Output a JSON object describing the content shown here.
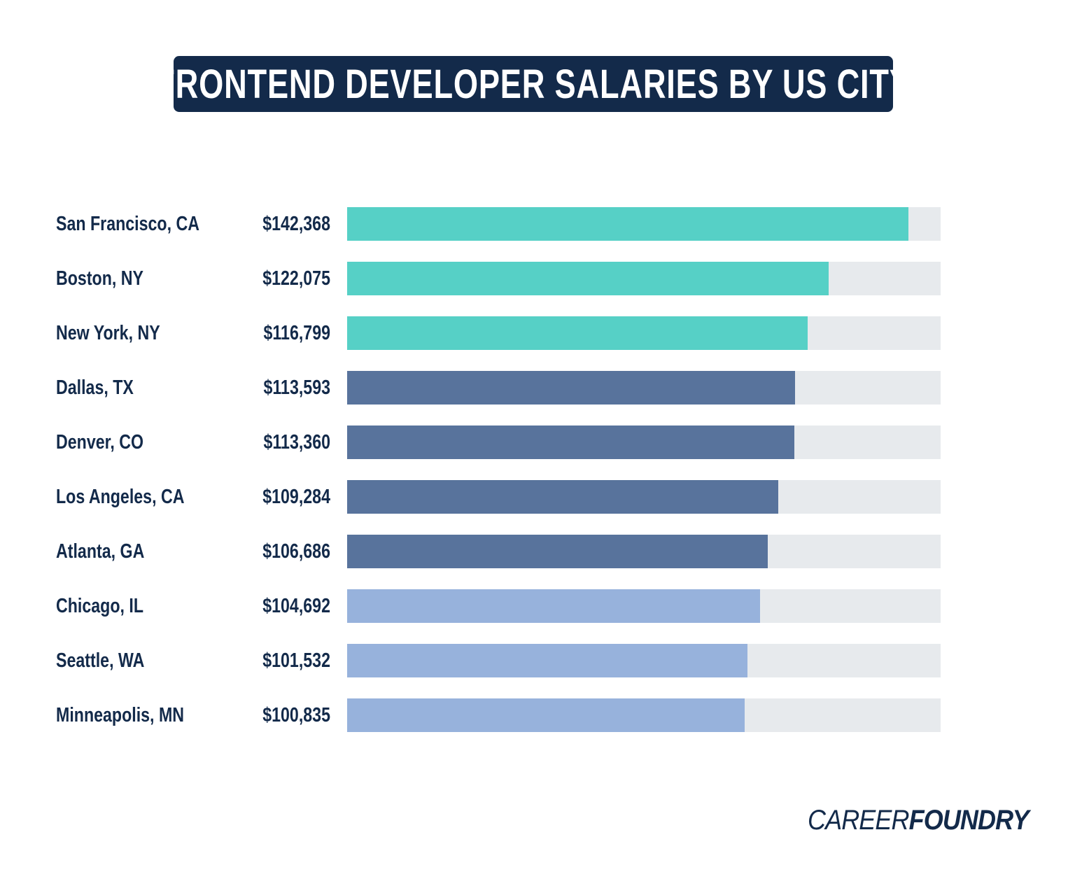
{
  "chart_data": {
    "type": "bar",
    "orientation": "horizontal",
    "title": "FRONTEND DEVELOPER SALARIES BY US CITY",
    "categories": [
      "San Francisco, CA",
      "Boston, NY",
      "New York, NY",
      "Dallas, TX",
      "Denver, CO",
      "Los Angeles, CA",
      "Atlanta, GA",
      "Chicago, IL",
      "Seattle, WA",
      "Minneapolis, MN"
    ],
    "values": [
      142368,
      122075,
      116799,
      113593,
      113360,
      109284,
      106686,
      104692,
      101532,
      100835
    ],
    "value_labels": [
      "$142,368",
      "$122,075",
      "$116,799",
      "$113,593",
      "$113,360",
      "$109,284",
      "$106,686",
      "$104,692",
      "$101,532",
      "$100,835"
    ],
    "bar_colors": [
      "#56d0c6",
      "#56d0c6",
      "#56d0c6",
      "#58739c",
      "#58739c",
      "#58739c",
      "#58739c",
      "#97b2dc",
      "#97b2dc",
      "#97b2dc"
    ],
    "track_color": "#e7eaed",
    "xlim": [
      0,
      150500
    ],
    "grid": false,
    "xlabel": "",
    "ylabel": ""
  },
  "brand": {
    "logo_part1": "CAREER",
    "logo_part2": "FOUNDRY",
    "color": "#132a4a"
  }
}
